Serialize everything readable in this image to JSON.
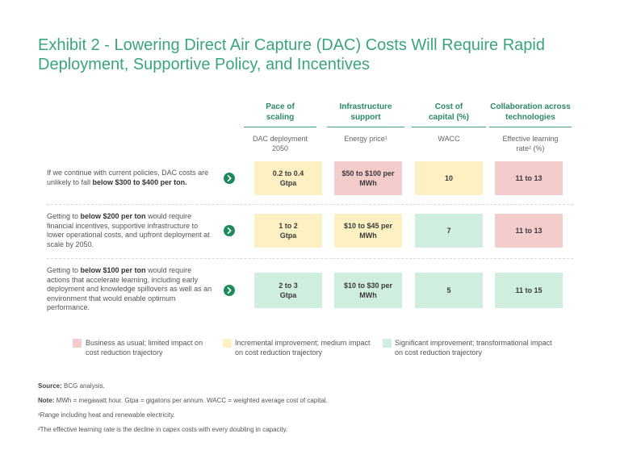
{
  "title": "Exhibit 2 - Lowering Direct Air Capture (DAC) Costs Will Require Rapid Deployment, Supportive Policy, and Incentives",
  "columns": [
    {
      "header": "Pace of scaling",
      "sub": "DAC deployment 2050"
    },
    {
      "header": "Infrastructure support",
      "sub": "Energy price¹"
    },
    {
      "header": "Cost of capital (%)",
      "sub": "WACC"
    },
    {
      "header": "Collaboration across technologies",
      "sub": "Effective learning rate² (%)"
    }
  ],
  "rows": [
    {
      "text_pre": "If we continue with current policies, DAC costs are unlikely to fall ",
      "text_bold": "below $300 to $400 per ton.",
      "text_post": "",
      "cells": [
        {
          "value": "0.2 to 0.4 Gtpa",
          "color": "yellow"
        },
        {
          "value": "$50 to $100 per MWh",
          "color": "red"
        },
        {
          "value": "10",
          "color": "yellow"
        },
        {
          "value": "11 to 13",
          "color": "red"
        }
      ]
    },
    {
      "text_pre": "Getting to ",
      "text_bold": "below $200 per ton",
      "text_post": " would require financial incentives, supportive infrastructure to lower operational costs, and upfront deployment at scale by 2050.",
      "cells": [
        {
          "value": "1 to 2 Gtpa",
          "color": "yellow"
        },
        {
          "value": "$10 to $45 per MWh",
          "color": "yellow"
        },
        {
          "value": "7",
          "color": "green"
        },
        {
          "value": "11 to 13",
          "color": "red"
        }
      ]
    },
    {
      "text_pre": "Getting to ",
      "text_bold": "below $100 per ton",
      "text_post": " would require actions that accelerate learning, including early deployment and knowledge spillovers as well as an environment that would enable optimum performance.",
      "cells": [
        {
          "value": "2 to 3 Gtpa",
          "color": "green"
        },
        {
          "value": "$10 to $30 per MWh",
          "color": "green"
        },
        {
          "value": "5",
          "color": "green"
        },
        {
          "value": "11 to 15",
          "color": "green"
        }
      ]
    }
  ],
  "legend": [
    {
      "label": "Business as usual; limited impact on cost reduction trajectory",
      "color": "#f4cccc"
    },
    {
      "label": "Incremental improvement; medium impact on cost reduction trajectory",
      "color": "#fdf1c4"
    },
    {
      "label": "Significant improvement; transformational impact on cost reduction trajectory",
      "color": "#cfeedd"
    }
  ],
  "notes": {
    "source_label": "Source:",
    "source_text": " BCG analysis.",
    "note_label": "Note:",
    "note_text": " MWh = megawatt hour. Gtpa = gigatons per annum. WACC = weighted average cost of capital.",
    "footnote1": "¹Range including heat and renewable electricity.",
    "footnote2": "²The effective learning rate is the decline in capex costs with every doubling in capacity."
  },
  "colors": {
    "accent": "#3aa57c",
    "arrow": "#1e8a5e",
    "red": "#f4cccc",
    "yellow": "#fdf1c4",
    "green": "#cfeedd"
  },
  "icons": {
    "row_arrow": "chevron-right-circle-icon"
  }
}
